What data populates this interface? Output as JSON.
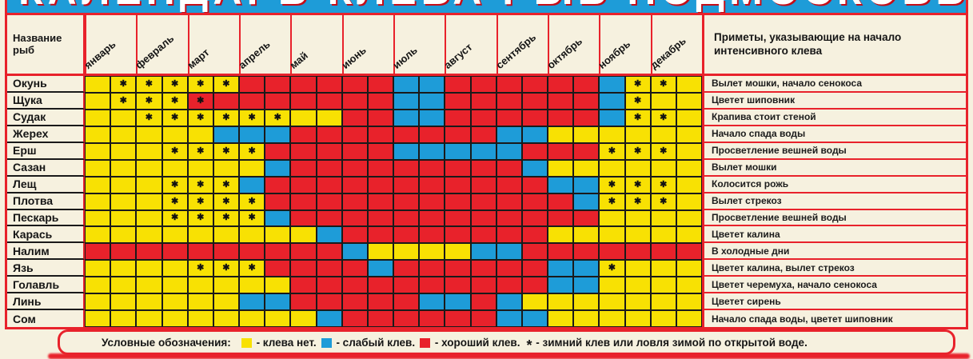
{
  "title_banner": {
    "text_cropped": "КАЛЕНДАРЬ КЛЕВА РЫБ ПОДМОСКОВЬЯ"
  },
  "header": {
    "fish_column_label": "Название рыб",
    "months": [
      "январь",
      "февраль",
      "март",
      "апрель",
      "май",
      "июнь",
      "июль",
      "август",
      "сентябрь",
      "октябрь",
      "ноябрь",
      "декабрь"
    ],
    "hints_column_label": "Приметы, указывающие на начало интенсивного клева"
  },
  "cell_colors": {
    "yellow": "#f8e103",
    "blue": "#1e9cd8",
    "red": "#e8222b"
  },
  "cell_code_legend": {
    "y": "клева нет (желтый)",
    "b": "слабый клев (синий)",
    "r": "хороший клев (красный)",
    "*": "зимний клев или ловля зимой по открытой воде"
  },
  "rows": [
    {
      "name": "Окунь",
      "cells": [
        "y",
        "y*",
        "y*",
        "y*",
        "y*",
        "y*",
        "r",
        "r",
        "r",
        "r",
        "r",
        "r",
        "b",
        "b",
        "r",
        "r",
        "r",
        "r",
        "r",
        "r",
        "b",
        "y*",
        "y*",
        "y"
      ],
      "hint": "Вылет мошки, начало сенокоса"
    },
    {
      "name": "Щука",
      "cells": [
        "y",
        "y*",
        "y*",
        "y*",
        "r*",
        "r",
        "r",
        "r",
        "r",
        "r",
        "r",
        "r",
        "b",
        "b",
        "r",
        "r",
        "r",
        "r",
        "r",
        "r",
        "b",
        "y*",
        "y",
        "y"
      ],
      "hint": "Цветет шиповник"
    },
    {
      "name": "Судак",
      "cells": [
        "y",
        "y",
        "y*",
        "y*",
        "y*",
        "y*",
        "y*",
        "y*",
        "y",
        "y",
        "r",
        "r",
        "b",
        "b",
        "r",
        "r",
        "r",
        "r",
        "r",
        "r",
        "b",
        "y*",
        "y*",
        "y"
      ],
      "hint": "Крапива стоит стеной"
    },
    {
      "name": "Жерех",
      "cells": [
        "y",
        "y",
        "y",
        "y",
        "y",
        "b",
        "b",
        "b",
        "r",
        "r",
        "r",
        "r",
        "r",
        "r",
        "r",
        "r",
        "b",
        "b",
        "y",
        "y",
        "y",
        "y",
        "y",
        "y"
      ],
      "hint": "Начало спада воды"
    },
    {
      "name": "Ерш",
      "cells": [
        "y",
        "y",
        "y",
        "y*",
        "y*",
        "y*",
        "y*",
        "r",
        "r",
        "r",
        "r",
        "r",
        "b",
        "b",
        "b",
        "b",
        "b",
        "r",
        "r",
        "r",
        "y*",
        "y*",
        "y*",
        "y"
      ],
      "hint": "Просветление вешней воды"
    },
    {
      "name": "Сазан",
      "cells": [
        "y",
        "y",
        "y",
        "y",
        "y",
        "y",
        "y",
        "b",
        "r",
        "r",
        "r",
        "r",
        "r",
        "r",
        "r",
        "r",
        "r",
        "b",
        "y",
        "y",
        "y",
        "y",
        "y",
        "y"
      ],
      "hint": "Вылет мошки"
    },
    {
      "name": "Лещ",
      "cells": [
        "y",
        "y",
        "y",
        "y*",
        "y*",
        "y*",
        "b",
        "r",
        "r",
        "r",
        "r",
        "r",
        "r",
        "r",
        "r",
        "r",
        "r",
        "r",
        "b",
        "b",
        "y*",
        "y*",
        "y*",
        "y"
      ],
      "hint": "Колосится рожь"
    },
    {
      "name": "Плотва",
      "cells": [
        "y",
        "y",
        "y",
        "y*",
        "y*",
        "y*",
        "y*",
        "r",
        "r",
        "r",
        "r",
        "r",
        "r",
        "r",
        "r",
        "r",
        "r",
        "r",
        "r",
        "b",
        "y*",
        "y*",
        "y*",
        "y"
      ],
      "hint": "Вылет стрекоз"
    },
    {
      "name": "Пескарь",
      "cells": [
        "y",
        "y",
        "y",
        "y*",
        "y*",
        "y*",
        "y*",
        "b",
        "r",
        "r",
        "r",
        "r",
        "r",
        "r",
        "r",
        "r",
        "r",
        "r",
        "r",
        "r",
        "y",
        "y",
        "y",
        "y"
      ],
      "hint": "Просветление вешней воды"
    },
    {
      "name": "Карась",
      "cells": [
        "y",
        "y",
        "y",
        "y",
        "y",
        "y",
        "y",
        "y",
        "y",
        "b",
        "r",
        "r",
        "r",
        "r",
        "r",
        "r",
        "r",
        "r",
        "y",
        "y",
        "y",
        "y",
        "y",
        "y"
      ],
      "hint": "Цветет калина"
    },
    {
      "name": "Налим",
      "cells": [
        "r",
        "r",
        "r",
        "r",
        "r",
        "r",
        "r",
        "r",
        "r",
        "r",
        "b",
        "y",
        "y",
        "y",
        "y",
        "b",
        "b",
        "r",
        "r",
        "r",
        "r",
        "r",
        "r",
        "r"
      ],
      "hint": "В холодные дни"
    },
    {
      "name": "Язь",
      "cells": [
        "y",
        "y",
        "y",
        "y",
        "y*",
        "y*",
        "y*",
        "r",
        "r",
        "r",
        "r",
        "b",
        "r",
        "r",
        "r",
        "r",
        "r",
        "r",
        "b",
        "b",
        "y*",
        "y",
        "y",
        "y"
      ],
      "hint": "Цветет калина, вылет стрекоз"
    },
    {
      "name": "Голавль",
      "cells": [
        "y",
        "y",
        "y",
        "y",
        "y",
        "y",
        "y",
        "y",
        "r",
        "r",
        "r",
        "r",
        "r",
        "r",
        "r",
        "r",
        "r",
        "r",
        "b",
        "b",
        "y",
        "y",
        "y",
        "y"
      ],
      "hint": "Цветет черемуха, начало сенокоса"
    },
    {
      "name": "Линь",
      "cells": [
        "y",
        "y",
        "y",
        "y",
        "y",
        "y",
        "b",
        "b",
        "r",
        "r",
        "r",
        "r",
        "r",
        "b",
        "b",
        "r",
        "b",
        "y",
        "y",
        "y",
        "y",
        "y",
        "y",
        "y"
      ],
      "hint": "Цветет сирень"
    },
    {
      "name": "Сом",
      "cells": [
        "y",
        "y",
        "y",
        "y",
        "y",
        "y",
        "y",
        "y",
        "y",
        "b",
        "r",
        "r",
        "r",
        "r",
        "r",
        "r",
        "b",
        "b",
        "y",
        "y",
        "y",
        "y",
        "y",
        "y"
      ],
      "hint": "Начало спада воды, цветет шиповник"
    }
  ],
  "legend": {
    "prefix": "Условные обозначения:",
    "items": [
      {
        "swatch": "yellow",
        "label": "- клева нет."
      },
      {
        "swatch": "blue",
        "label": "- слабый клев."
      },
      {
        "swatch": "red",
        "label": "- хороший клев."
      },
      {
        "swatch": "asterisk",
        "symbol": "*",
        "label": "- зимний клев или ловля зимой по открытой воде."
      }
    ]
  }
}
